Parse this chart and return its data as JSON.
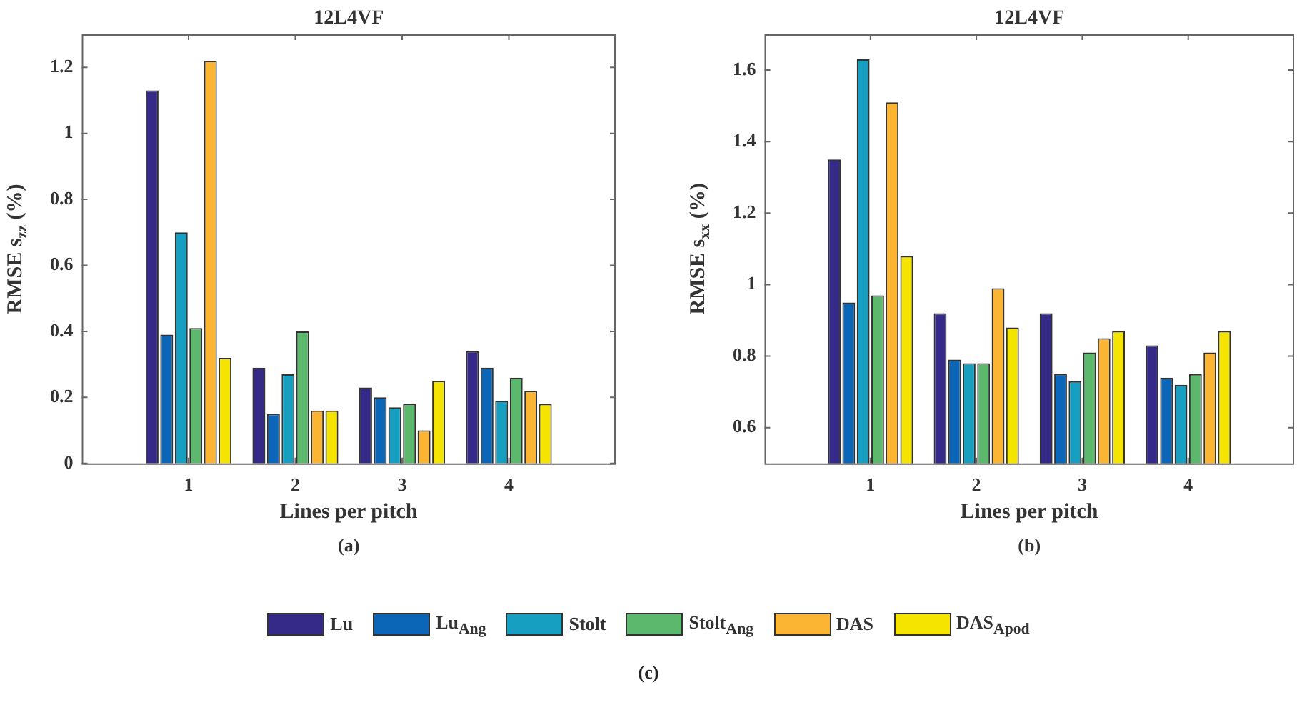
{
  "chart_data": [
    {
      "type": "bar",
      "title": "12L4VF",
      "xlabel": "Lines per pitch",
      "ylabel": "RMSE s$_{zz}$ (%)",
      "categories": [
        "1",
        "2",
        "3",
        "4"
      ],
      "series": [
        {
          "name": "Lu",
          "color": "#352a87",
          "values": [
            1.13,
            0.29,
            0.23,
            0.34
          ]
        },
        {
          "name": "Lu$_{Ang}$",
          "color": "#0b66b8",
          "values": [
            0.39,
            0.15,
            0.2,
            0.29
          ]
        },
        {
          "name": "Stolt",
          "color": "#169fc0",
          "values": [
            0.7,
            0.27,
            0.17,
            0.19
          ]
        },
        {
          "name": "Stolt$_{Ang}$",
          "color": "#5cb86c",
          "values": [
            0.41,
            0.4,
            0.18,
            0.26
          ]
        },
        {
          "name": "DAS",
          "color": "#fbb532",
          "values": [
            1.22,
            0.16,
            0.1,
            0.22
          ]
        },
        {
          "name": "DAS$_{Apod}$",
          "color": "#f5e400",
          "values": [
            0.32,
            0.16,
            0.25,
            0.18
          ]
        }
      ],
      "ylim": [
        0,
        1.3
      ],
      "yticks": [
        0,
        0.2,
        0.4,
        0.6,
        0.8,
        1,
        1.2
      ],
      "grid": false,
      "legend": "bottom",
      "annotations": [
        "(a)",
        "(c)"
      ]
    },
    {
      "type": "bar",
      "title": "12L4VF",
      "xlabel": "Lines per pitch",
      "ylabel": "RMSE s$_{xx}$ (%)",
      "categories": [
        "1",
        "2",
        "3",
        "4"
      ],
      "series": [
        {
          "color": "#352a87",
          "values": [
            1.35,
            0.92,
            0.92,
            0.83
          ]
        },
        {
          "color": "#0b66b8",
          "values": [
            0.95,
            0.79,
            0.75,
            0.74
          ]
        },
        {
          "color": "#169fc0",
          "values": [
            1.63,
            0.78,
            0.73,
            0.72
          ]
        },
        {
          "color": "#5cb86c",
          "values": [
            0.97,
            0.78,
            0.81,
            0.75
          ]
        },
        {
          "color": "#fbb532",
          "values": [
            1.51,
            0.99,
            0.85,
            0.81
          ]
        },
        {
          "color": "#f5e400",
          "values": [
            1.08,
            0.88,
            0.87,
            0.87
          ]
        }
      ],
      "ylim": [
        0.5,
        1.7
      ],
      "yticks": [
        0.6,
        0.8,
        1,
        1.2,
        1.4,
        1.6
      ],
      "grid": false,
      "annotations": [
        "(b)"
      ]
    }
  ]
}
